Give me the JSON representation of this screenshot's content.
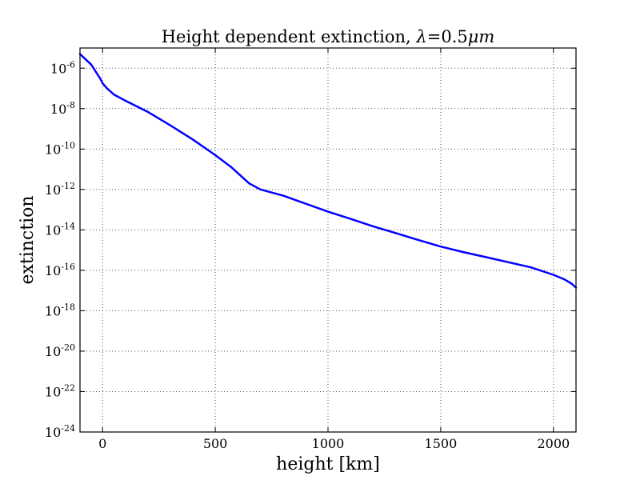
{
  "chart_data": {
    "type": "line",
    "title": "Height dependent extinction, λ=0.5μm",
    "title_parts": {
      "text": "Height dependent extinction, ",
      "symbol": "λ",
      "equals": "=",
      "value": "0.5",
      "unit": "μm"
    },
    "xlabel": "height [km]",
    "ylabel": "extinction",
    "xlim": [
      -100,
      2100
    ],
    "ylim": [
      1e-24,
      1e-05
    ],
    "yscale": "log",
    "grid": true,
    "xticks": [
      0,
      500,
      1000,
      1500,
      2000
    ],
    "yticks": [
      {
        "value": 1e-06,
        "base": "10",
        "exp": "-6"
      },
      {
        "value": 1e-08,
        "base": "10",
        "exp": "-8"
      },
      {
        "value": 1e-10,
        "base": "10",
        "exp": "-10"
      },
      {
        "value": 1e-12,
        "base": "10",
        "exp": "-12"
      },
      {
        "value": 1e-14,
        "base": "10",
        "exp": "-14"
      },
      {
        "value": 1e-16,
        "base": "10",
        "exp": "-16"
      },
      {
        "value": 1e-18,
        "base": "10",
        "exp": "-18"
      },
      {
        "value": 1e-20,
        "base": "10",
        "exp": "-20"
      },
      {
        "value": 1e-22,
        "base": "10",
        "exp": "-22"
      },
      {
        "value": 1e-24,
        "base": "10",
        "exp": "-24"
      }
    ],
    "series": [
      {
        "color": "#0000ff",
        "x": [
          -100,
          -50,
          -10,
          0,
          20,
          50,
          100,
          200,
          300,
          400,
          500,
          570,
          650,
          700,
          800,
          900,
          1000,
          1100,
          1200,
          1300,
          1400,
          1500,
          1600,
          1700,
          1800,
          1900,
          2000,
          2050,
          2080,
          2100
        ],
        "y": [
          5e-06,
          1.5e-06,
          3e-07,
          1.8e-07,
          1e-07,
          5e-08,
          2.5e-08,
          7e-09,
          1.5e-09,
          3e-10,
          5e-11,
          1.3e-11,
          2e-12,
          1e-12,
          5e-13,
          2e-13,
          8e-14,
          3.5e-14,
          1.5e-14,
          7e-15,
          3.2e-15,
          1.5e-15,
          8e-16,
          4.5e-16,
          2.5e-16,
          1.4e-16,
          6e-17,
          3.5e-17,
          2.2e-17,
          1.4e-17
        ]
      }
    ]
  }
}
